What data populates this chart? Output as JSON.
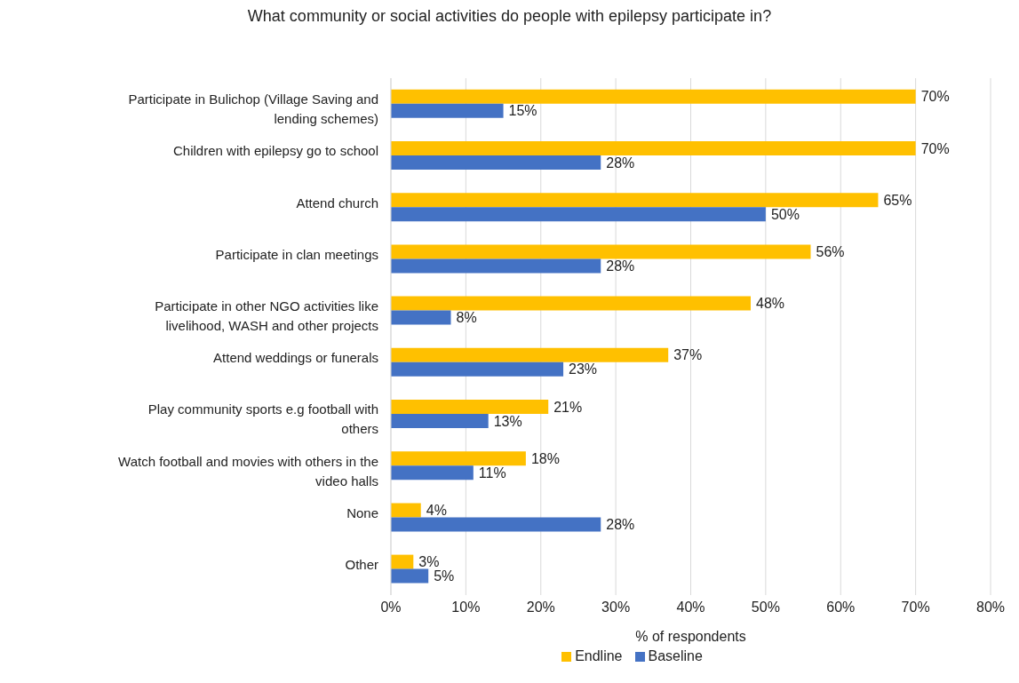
{
  "chart_data": {
    "type": "bar",
    "orientation": "horizontal",
    "title": "What community or social activities do people with epilepsy participate in?",
    "xlabel": "% of respondents",
    "categories": [
      "Participate in Bulichop (Village Saving and lending schemes)",
      "Children with epilepsy go to school",
      "Attend church",
      "Participate in clan meetings",
      "Participate in other NGO activities like livelihood, WASH and other projects",
      "Attend weddings or funerals",
      "Play community sports e.g football with others",
      "Watch football and movies with others in the video halls",
      "None",
      "Other"
    ],
    "series": [
      {
        "name": "Endline",
        "color": "#ffc000",
        "values": [
          70,
          70,
          65,
          56,
          48,
          37,
          21,
          18,
          4,
          3
        ],
        "value_labels": [
          "70%",
          "70%",
          "65%",
          "56%",
          "48%",
          "37%",
          "21%",
          "18%",
          "4%",
          "3%"
        ]
      },
      {
        "name": "Baseline",
        "color": "#4472c4",
        "values": [
          15,
          28,
          50,
          28,
          8,
          23,
          13,
          11,
          28,
          5
        ],
        "value_labels": [
          "15%",
          "28%",
          "50%",
          "28%",
          "8%",
          "23%",
          "13%",
          "11%",
          "28%",
          "5%"
        ]
      }
    ],
    "xlim": [
      0,
      80
    ],
    "xticks": [
      {
        "value": 0,
        "label": "0%"
      },
      {
        "value": 10,
        "label": "10%"
      },
      {
        "value": 20,
        "label": "20%"
      },
      {
        "value": 30,
        "label": "30%"
      },
      {
        "value": 40,
        "label": "40%"
      },
      {
        "value": 50,
        "label": "50%"
      },
      {
        "value": 60,
        "label": "60%"
      },
      {
        "value": 70,
        "label": "70%"
      },
      {
        "value": 80,
        "label": "80%"
      }
    ],
    "grid": "x",
    "legend": "bottom"
  }
}
